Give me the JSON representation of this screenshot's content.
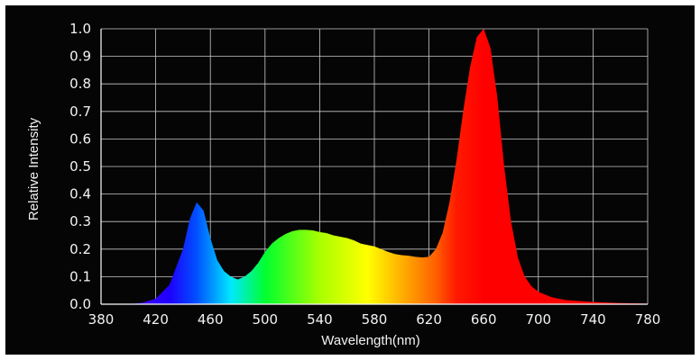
{
  "chart_data": {
    "type": "area",
    "title": "",
    "xlabel": "Wavelength(nm)",
    "ylabel": "Relative Intensity",
    "xlim": [
      380,
      780
    ],
    "ylim": [
      0,
      1.0
    ],
    "grid": true,
    "x_ticks": [
      "380",
      "420",
      "460",
      "500",
      "540",
      "580",
      "620",
      "660",
      "700",
      "740",
      "780"
    ],
    "y_ticks": [
      "0.0",
      "0.1",
      "0.2",
      "0.3",
      "0.4",
      "0.5",
      "0.6",
      "0.7",
      "0.8",
      "0.9",
      "1.0"
    ],
    "series": [
      {
        "x": [
          380,
          400,
          410,
          420,
          430,
          440,
          445,
          450,
          455,
          460,
          465,
          470,
          475,
          480,
          485,
          490,
          495,
          500,
          505,
          510,
          515,
          520,
          525,
          530,
          535,
          540,
          545,
          550,
          555,
          560,
          565,
          570,
          575,
          580,
          585,
          590,
          595,
          600,
          605,
          610,
          615,
          620,
          625,
          630,
          635,
          640,
          645,
          650,
          655,
          660,
          665,
          670,
          675,
          680,
          685,
          690,
          695,
          700,
          710,
          720,
          740,
          760,
          780
        ],
        "values": [
          0,
          0,
          0.005,
          0.02,
          0.07,
          0.2,
          0.31,
          0.37,
          0.34,
          0.24,
          0.16,
          0.12,
          0.1,
          0.09,
          0.1,
          0.12,
          0.15,
          0.19,
          0.22,
          0.24,
          0.255,
          0.265,
          0.27,
          0.27,
          0.268,
          0.262,
          0.258,
          0.25,
          0.245,
          0.24,
          0.232,
          0.22,
          0.215,
          0.21,
          0.2,
          0.19,
          0.182,
          0.178,
          0.176,
          0.172,
          0.17,
          0.172,
          0.2,
          0.26,
          0.37,
          0.52,
          0.7,
          0.86,
          0.97,
          1.0,
          0.93,
          0.75,
          0.5,
          0.3,
          0.17,
          0.1,
          0.065,
          0.045,
          0.025,
          0.015,
          0.008,
          0.004,
          0.002
        ]
      }
    ]
  }
}
